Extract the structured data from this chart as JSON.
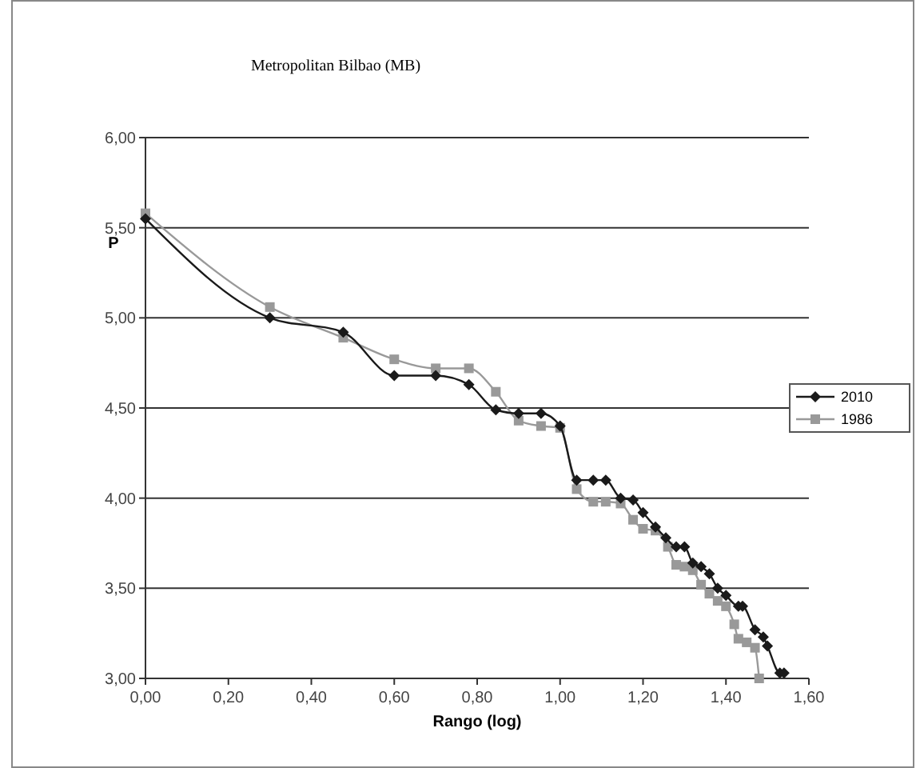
{
  "chart_data": {
    "type": "line",
    "title": "Metropolitan Bilbao (MB)",
    "xlabel": "Rango (log)",
    "ylabel": "P",
    "xlim": [
      0,
      1.6
    ],
    "ylim": [
      3,
      6
    ],
    "xticks": [
      {
        "value": 0,
        "label": "0,00"
      },
      {
        "value": 0.2,
        "label": "0,20"
      },
      {
        "value": 0.4,
        "label": "0,40"
      },
      {
        "value": 0.6,
        "label": "0,60"
      },
      {
        "value": 0.8,
        "label": "0,80"
      },
      {
        "value": 1,
        "label": "1,00"
      },
      {
        "value": 1.2,
        "label": "1,20"
      },
      {
        "value": 1.4,
        "label": "1,40"
      },
      {
        "value": 1.6,
        "label": "1,60"
      }
    ],
    "yticks": [
      {
        "value": 3,
        "label": "3,00"
      },
      {
        "value": 3.5,
        "label": "3,50"
      },
      {
        "value": 4,
        "label": "4,00"
      },
      {
        "value": 4.5,
        "label": "4,50"
      },
      {
        "value": 5,
        "label": "5,00"
      },
      {
        "value": 5.5,
        "label": "5,50"
      },
      {
        "value": 6,
        "label": "6,00"
      }
    ],
    "grid": "y",
    "legend": "right",
    "series": [
      {
        "name": "2010",
        "color": "#1a1a1a",
        "marker": "diamond",
        "x": [
          0,
          0.3,
          0.477,
          0.6,
          0.7,
          0.78,
          0.845,
          0.9,
          0.954,
          1.0,
          1.04,
          1.08,
          1.11,
          1.146,
          1.176,
          1.2,
          1.23,
          1.255,
          1.28,
          1.3,
          1.32,
          1.34,
          1.36,
          1.38,
          1.4,
          1.43,
          1.44,
          1.47,
          1.49,
          1.5,
          1.53,
          1.54
        ],
        "values": [
          5.55,
          5.0,
          4.92,
          4.68,
          4.68,
          4.63,
          4.49,
          4.47,
          4.47,
          4.4,
          4.1,
          4.1,
          4.1,
          4.0,
          3.99,
          3.92,
          3.84,
          3.78,
          3.73,
          3.73,
          3.64,
          3.62,
          3.58,
          3.5,
          3.46,
          3.4,
          3.4,
          3.27,
          3.23,
          3.18,
          3.03,
          3.03
        ]
      },
      {
        "name": "1986",
        "color": "#999999",
        "marker": "square",
        "x": [
          0,
          0.3,
          0.477,
          0.6,
          0.7,
          0.78,
          0.845,
          0.9,
          0.954,
          1.0,
          1.04,
          1.08,
          1.11,
          1.146,
          1.176,
          1.2,
          1.23,
          1.26,
          1.28,
          1.3,
          1.32,
          1.34,
          1.36,
          1.38,
          1.4,
          1.42,
          1.43,
          1.45,
          1.47,
          1.48
        ],
        "values": [
          5.58,
          5.06,
          4.89,
          4.77,
          4.72,
          4.72,
          4.59,
          4.43,
          4.4,
          4.39,
          4.05,
          3.98,
          3.98,
          3.97,
          3.88,
          3.83,
          3.82,
          3.73,
          3.63,
          3.62,
          3.6,
          3.52,
          3.47,
          3.43,
          3.4,
          3.3,
          3.22,
          3.2,
          3.17,
          3.0
        ]
      }
    ]
  }
}
